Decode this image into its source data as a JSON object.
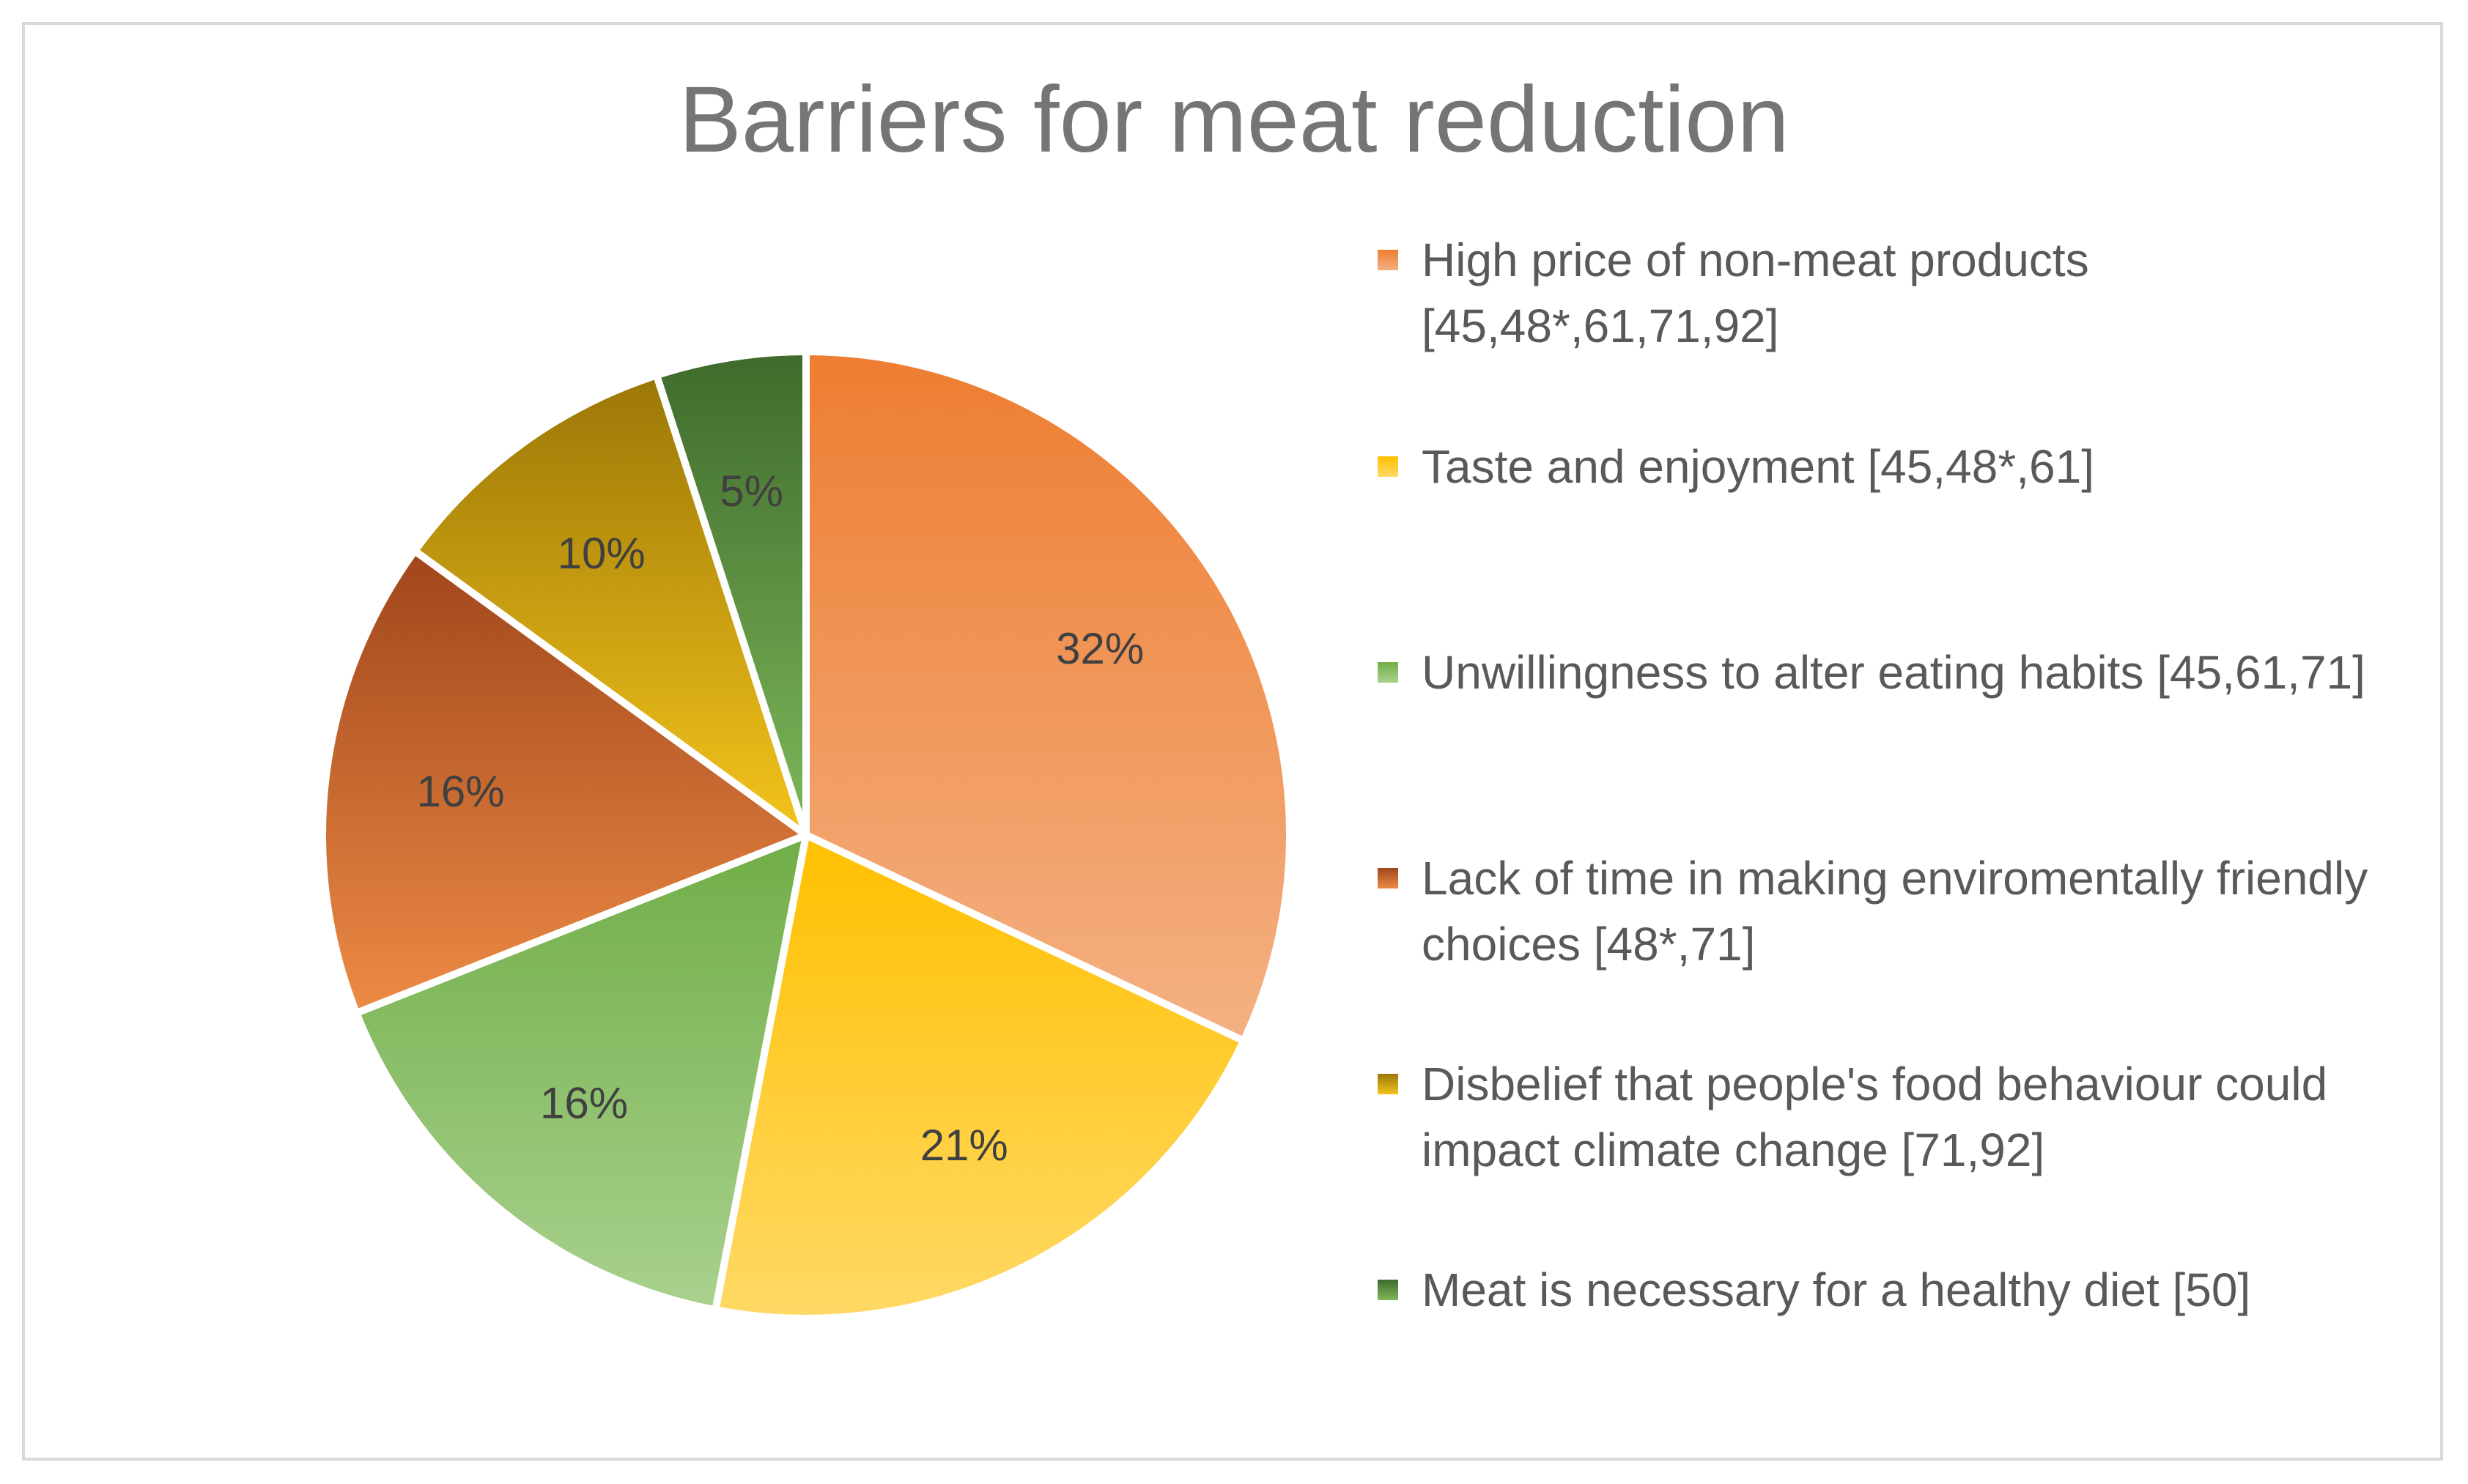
{
  "chart_data": {
    "type": "pie",
    "title": "Barriers for meat reduction",
    "slices": [
      {
        "label": "High price of non-meat products [45,48*,61,71,92]",
        "value": 32,
        "display": "32%",
        "color_top": "#ed7d31",
        "color_bottom": "#f4b183"
      },
      {
        "label": "Taste and enjoyment [45,48*,61]",
        "value": 21,
        "display": "21%",
        "color_top": "#ffc000",
        "color_bottom": "#ffd966"
      },
      {
        "label": "Unwillingness to alter eating habits [45,61,71]",
        "value": 16,
        "display": "16%",
        "color_top": "#70ad47",
        "color_bottom": "#a9d18e"
      },
      {
        "label": "Lack of time in making enviromentally friendly choices [48*,71]",
        "value": 16,
        "display": "16%",
        "color_top": "#a0461b",
        "color_bottom": "#ed8a45"
      },
      {
        "label": "Disbelief that people's food behaviour could impact climate change [71,92]",
        "value": 10,
        "display": "10%",
        "color_top": "#9b7707",
        "color_bottom": "#f4c41c"
      },
      {
        "label": "Meat is necessary for a healthy diet [50]",
        "value": 5,
        "display": "5%",
        "color_top": "#3f6a2c",
        "color_bottom": "#7db85a"
      }
    ],
    "legend_position": "right"
  }
}
